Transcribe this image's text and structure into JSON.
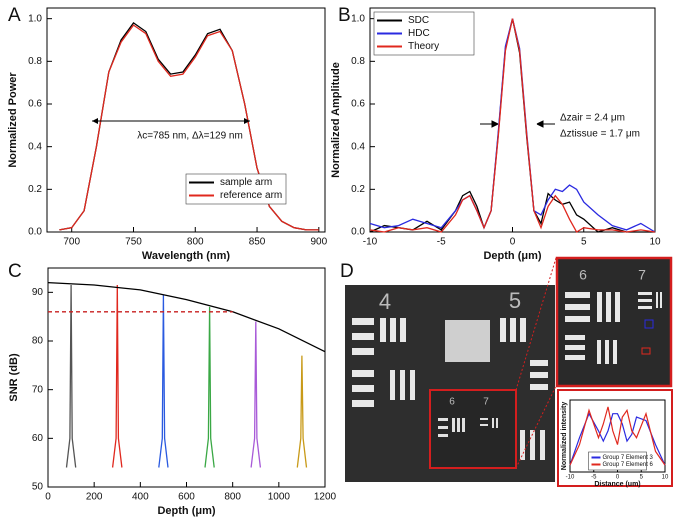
{
  "chart_data": [
    {
      "type": "line",
      "panel": "A",
      "xlabel": "Wavelength (nm)",
      "ylabel": "Normalized Power",
      "xlim": [
        680,
        905
      ],
      "xticks": [
        700,
        750,
        800,
        850,
        900
      ],
      "ylim": [
        0,
        1.05
      ],
      "yticks": [
        {
          "value": 0,
          "label": "0.0"
        },
        {
          "value": 0.2,
          "label": "0.2"
        },
        {
          "value": 0.4,
          "label": "0.4"
        },
        {
          "value": 0.6,
          "label": "0.6"
        },
        {
          "value": 0.8,
          "label": "0.8"
        },
        {
          "value": 1,
          "label": "1.0"
        }
      ],
      "legend": "lower center",
      "annotations": [
        "λc=785 nm, Δλ=129 nm"
      ],
      "x": [
        690,
        700,
        710,
        720,
        730,
        740,
        750,
        760,
        770,
        780,
        790,
        800,
        810,
        820,
        830,
        840,
        850,
        860,
        870,
        880,
        890,
        900
      ],
      "series": [
        {
          "name": "sample arm",
          "color": "#000000",
          "values": [
            0.01,
            0.02,
            0.1,
            0.4,
            0.75,
            0.9,
            0.98,
            0.94,
            0.81,
            0.74,
            0.75,
            0.83,
            0.93,
            0.95,
            0.85,
            0.6,
            0.3,
            0.12,
            0.05,
            0.02,
            0.01,
            0.01
          ]
        },
        {
          "name": "reference arm",
          "color": "#e0281e",
          "values": [
            0.01,
            0.02,
            0.1,
            0.4,
            0.75,
            0.89,
            0.97,
            0.93,
            0.8,
            0.73,
            0.74,
            0.82,
            0.92,
            0.94,
            0.85,
            0.6,
            0.3,
            0.12,
            0.05,
            0.02,
            0.01,
            0.01
          ]
        }
      ]
    },
    {
      "type": "line",
      "panel": "B",
      "xlabel": "Depth (μm)",
      "ylabel": "Normalized Amplitude",
      "xlim": [
        -10,
        10
      ],
      "xticks": [
        -10,
        -5,
        0,
        5,
        10
      ],
      "ylim": [
        0,
        1.05
      ],
      "yticks": [
        {
          "value": 0,
          "label": "0.0"
        },
        {
          "value": 0.2,
          "label": "0.2"
        },
        {
          "value": 0.4,
          "label": "0.4"
        },
        {
          "value": 0.6,
          "label": "0.6"
        },
        {
          "value": 0.8,
          "label": "0.8"
        },
        {
          "value": 1,
          "label": "1.0"
        }
      ],
      "legend": "upper left",
      "annotations": [
        "Δzair = 2.4 μm",
        "Δztissue = 1.7 μm"
      ],
      "x": [
        -10,
        -9,
        -8,
        -7,
        -6,
        -5,
        -4,
        -3.5,
        -3,
        -2.5,
        -2,
        -1.5,
        -1,
        -0.5,
        0,
        0.5,
        1,
        1.5,
        2,
        2.5,
        3,
        3.5,
        4,
        4.5,
        5,
        6,
        7,
        8,
        9,
        10
      ],
      "series": [
        {
          "name": "SDC",
          "color": "#000000",
          "values": [
            0,
            0.03,
            0.02,
            0.01,
            0.05,
            0.01,
            0.1,
            0.17,
            0.19,
            0.12,
            0.02,
            0.1,
            0.46,
            0.86,
            1,
            0.84,
            0.44,
            0.1,
            0.04,
            0.18,
            0.15,
            0.13,
            0.14,
            0.08,
            0.06,
            0,
            0.02,
            0,
            0,
            0
          ]
        },
        {
          "name": "HDC",
          "color": "#2a2ae0",
          "values": [
            0.04,
            0.02,
            0.03,
            0.06,
            0.04,
            0.02,
            0.1,
            0.15,
            0.17,
            0.1,
            0.02,
            0.1,
            0.47,
            0.87,
            1,
            0.86,
            0.46,
            0.1,
            0.08,
            0.15,
            0.2,
            0.19,
            0.22,
            0.2,
            0.14,
            0.08,
            0.03,
            0.01,
            0.04,
            0
          ]
        },
        {
          "name": "Theory",
          "color": "#e0281e",
          "values": [
            0.01,
            0,
            0.02,
            0.01,
            0.02,
            0,
            0.08,
            0.15,
            0.17,
            0.1,
            0.02,
            0.1,
            0.45,
            0.85,
            1,
            0.85,
            0.45,
            0.1,
            0.02,
            0.12,
            0.17,
            0.13,
            0.06,
            0,
            0.02,
            0.01,
            0.01,
            0,
            0.01,
            0
          ]
        }
      ]
    },
    {
      "type": "line",
      "panel": "C",
      "xlabel": "Depth (μm)",
      "ylabel": "SNR (dB)",
      "xlim": [
        0,
        1200
      ],
      "xticks": [
        0,
        200,
        400,
        600,
        800,
        1000,
        1200
      ],
      "ylim": [
        50,
        95
      ],
      "yticks": [
        50,
        60,
        70,
        80,
        90
      ],
      "series": [
        {
          "color": "#555555",
          "x": [
            80,
            95,
            100,
            105,
            120
          ],
          "values": [
            54,
            60,
            91.5,
            60,
            54
          ]
        },
        {
          "color": "#e0281e",
          "x": [
            280,
            295,
            300,
            305,
            320
          ],
          "values": [
            54,
            60,
            91.5,
            60,
            54
          ]
        },
        {
          "color": "#2a5ae0",
          "x": [
            480,
            495,
            500,
            505,
            520
          ],
          "values": [
            54,
            60,
            89.5,
            60,
            54
          ]
        },
        {
          "color": "#3aa845",
          "x": [
            680,
            695,
            700,
            705,
            720
          ],
          "values": [
            54,
            60,
            87,
            60,
            54
          ]
        },
        {
          "color": "#a85ad8",
          "x": [
            880,
            895,
            900,
            905,
            920
          ],
          "values": [
            54,
            60,
            84,
            60,
            54
          ]
        },
        {
          "color": "#c89a18",
          "x": [
            1080,
            1095,
            1100,
            1105,
            1120
          ],
          "values": [
            54,
            60,
            77,
            60,
            54
          ]
        },
        {
          "color": "#000000",
          "x": [
            0,
            200,
            400,
            600,
            800,
            1000,
            1200
          ],
          "values": [
            92,
            91.5,
            90.5,
            88.5,
            86,
            82.5,
            77.8
          ]
        },
        {
          "color": "#c81e1e",
          "dash": true,
          "x": [
            0,
            800
          ],
          "values": [
            86,
            86
          ]
        }
      ]
    },
    {
      "type": "line",
      "panel": "D",
      "xlabel": "Distance (um)",
      "ylabel": "Normalized intensity",
      "image_labels": [
        "4",
        "5",
        "6",
        "7",
        "6",
        "7"
      ],
      "xlim": [
        -10,
        10
      ],
      "xticks": [
        -10,
        -5,
        0,
        5,
        10
      ],
      "ylim": [
        0,
        1.05
      ],
      "legend": "lower center",
      "x": [
        -10,
        -8,
        -6,
        -4,
        -3,
        -2,
        -1,
        0,
        1,
        2,
        3,
        4,
        6,
        8,
        10
      ],
      "series": [
        {
          "name": "Group 7 Element 3",
          "color": "#2a2ae0",
          "values": [
            0.1,
            0.5,
            0.85,
            0.6,
            0.45,
            0.6,
            0.85,
            0.85,
            0.7,
            0.45,
            0.55,
            0.8,
            0.75,
            0.4,
            0.1
          ]
        },
        {
          "name": "Group 7 Element 6",
          "color": "#e0281e",
          "values": [
            0.1,
            0.4,
            0.9,
            0.5,
            0.7,
            0.95,
            0.6,
            0.4,
            0.8,
            0.9,
            0.6,
            0.5,
            0.85,
            0.3,
            0.1
          ]
        }
      ]
    }
  ]
}
